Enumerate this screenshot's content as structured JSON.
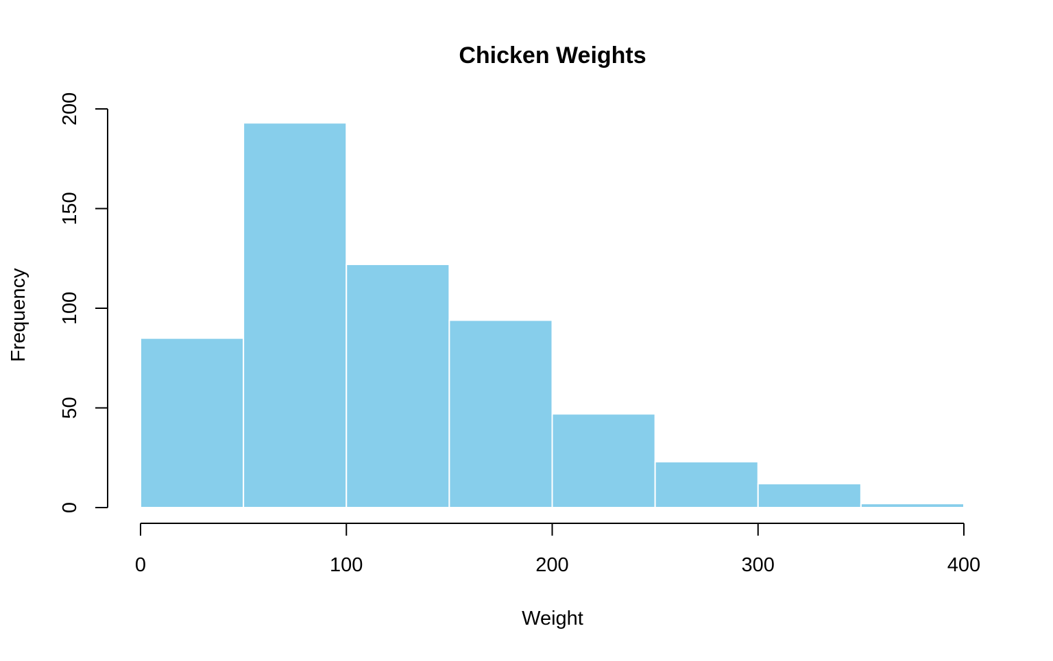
{
  "chart_data": {
    "type": "bar",
    "title": "Chicken Weights",
    "xlabel": "Weight",
    "ylabel": "Frequency",
    "bin_edges": [
      0,
      50,
      100,
      150,
      200,
      250,
      300,
      350,
      400
    ],
    "values": [
      85,
      193,
      122,
      94,
      47,
      23,
      12,
      2
    ],
    "x_ticks": [
      0,
      100,
      200,
      300,
      400
    ],
    "y_ticks": [
      0,
      50,
      100,
      150,
      200
    ],
    "xlim": [
      0,
      400
    ],
    "ylim": [
      0,
      200
    ],
    "grid": false,
    "bar_color": "#87CEEB",
    "bar_border_color": "#ffffff"
  }
}
